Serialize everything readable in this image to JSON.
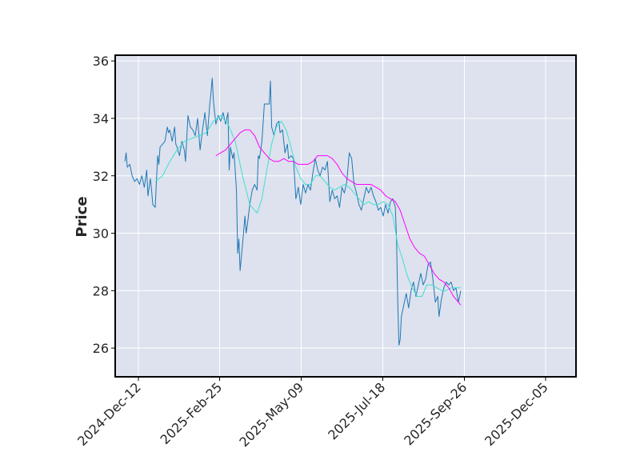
{
  "chart_data": {
    "type": "line",
    "title": "",
    "xlabel": "",
    "ylabel": "Price",
    "ylim": [
      25.0,
      36.2
    ],
    "grid": true,
    "background_color": "#dde2ee",
    "x_tick_labels": [
      "2024-Dec-12",
      "2025-Feb-25",
      "2025-May-09",
      "2025-Jul-18",
      "2025-Sep-26",
      "2025-Dec-05"
    ],
    "y_ticks": [
      26,
      28,
      30,
      32,
      34,
      36
    ],
    "y_tick_labels": [
      "26",
      "28",
      "30",
      "32",
      "34",
      "36"
    ],
    "x_range": [
      "2024-12-04",
      "2025-12-19"
    ],
    "series": [
      {
        "color": "#1f77b4",
        "width": 1,
        "points": [
          [
            "2024-12-12",
            32.5
          ],
          [
            "2024-12-13",
            32.8
          ],
          [
            "2024-12-14",
            32.3
          ],
          [
            "2024-12-16",
            32.4
          ],
          [
            "2024-12-18",
            32.0
          ],
          [
            "2024-12-20",
            31.8
          ],
          [
            "2024-12-22",
            31.9
          ],
          [
            "2024-12-24",
            31.7
          ],
          [
            "2024-12-26",
            32.0
          ],
          [
            "2024-12-28",
            31.6
          ],
          [
            "2024-12-30",
            32.2
          ],
          [
            "2024-12-31",
            31.3
          ],
          [
            "2025-01-02",
            31.9
          ],
          [
            "2025-01-03",
            31.5
          ],
          [
            "2025-01-04",
            31.0
          ],
          [
            "2025-01-06",
            30.9
          ],
          [
            "2025-01-08",
            32.7
          ],
          [
            "2025-01-09",
            32.4
          ],
          [
            "2025-01-10",
            33.0
          ],
          [
            "2025-01-12",
            33.1
          ],
          [
            "2025-01-14",
            33.2
          ],
          [
            "2025-01-16",
            33.7
          ],
          [
            "2025-01-17",
            33.5
          ],
          [
            "2025-01-18",
            33.6
          ],
          [
            "2025-01-20",
            33.2
          ],
          [
            "2025-01-22",
            33.7
          ],
          [
            "2025-01-23",
            33.1
          ],
          [
            "2025-01-24",
            33.0
          ],
          [
            "2025-01-26",
            32.7
          ],
          [
            "2025-01-28",
            33.2
          ],
          [
            "2025-01-30",
            32.9
          ],
          [
            "2025-01-31",
            32.5
          ],
          [
            "2025-02-02",
            34.1
          ],
          [
            "2025-02-04",
            33.7
          ],
          [
            "2025-02-06",
            33.6
          ],
          [
            "2025-02-08",
            33.4
          ],
          [
            "2025-02-10",
            34.0
          ],
          [
            "2025-02-12",
            32.9
          ],
          [
            "2025-02-14",
            33.6
          ],
          [
            "2025-02-16",
            34.2
          ],
          [
            "2025-02-18",
            33.4
          ],
          [
            "2025-02-20",
            34.5
          ],
          [
            "2025-02-21",
            34.9
          ],
          [
            "2025-02-22",
            35.4
          ],
          [
            "2025-02-23",
            34.6
          ],
          [
            "2025-02-25",
            33.8
          ],
          [
            "2025-02-27",
            34.1
          ],
          [
            "2025-03-01",
            33.9
          ],
          [
            "2025-03-03",
            34.2
          ],
          [
            "2025-03-05",
            33.8
          ],
          [
            "2025-03-07",
            34.2
          ],
          [
            "2025-03-08",
            32.2
          ],
          [
            "2025-03-09",
            33.0
          ],
          [
            "2025-03-11",
            32.6
          ],
          [
            "2025-03-12",
            32.8
          ],
          [
            "2025-03-14",
            31.5
          ],
          [
            "2025-03-15",
            29.3
          ],
          [
            "2025-03-16",
            29.8
          ],
          [
            "2025-03-17",
            28.7
          ],
          [
            "2025-03-19",
            29.6
          ],
          [
            "2025-03-21",
            30.6
          ],
          [
            "2025-03-22",
            30.0
          ],
          [
            "2025-03-23",
            30.3
          ],
          [
            "2025-03-25",
            31.0
          ],
          [
            "2025-03-27",
            31.5
          ],
          [
            "2025-03-29",
            31.7
          ],
          [
            "2025-03-31",
            31.5
          ],
          [
            "2025-04-01",
            32.7
          ],
          [
            "2025-04-02",
            32.6
          ],
          [
            "2025-04-04",
            33.2
          ],
          [
            "2025-04-06",
            34.5
          ],
          [
            "2025-04-08",
            34.5
          ],
          [
            "2025-04-10",
            34.5
          ],
          [
            "2025-04-11",
            35.3
          ],
          [
            "2025-04-12",
            33.7
          ],
          [
            "2025-04-14",
            33.4
          ],
          [
            "2025-04-16",
            33.8
          ],
          [
            "2025-04-18",
            33.9
          ],
          [
            "2025-04-19",
            33.5
          ],
          [
            "2025-04-21",
            33.6
          ],
          [
            "2025-04-23",
            32.8
          ],
          [
            "2025-04-25",
            33.1
          ],
          [
            "2025-04-26",
            32.6
          ],
          [
            "2025-04-28",
            32.7
          ],
          [
            "2025-04-30",
            32.6
          ],
          [
            "2025-05-02",
            31.2
          ],
          [
            "2025-05-04",
            31.6
          ],
          [
            "2025-05-06",
            31.0
          ],
          [
            "2025-05-08",
            31.7
          ],
          [
            "2025-05-10",
            31.4
          ],
          [
            "2025-05-12",
            31.7
          ],
          [
            "2025-05-14",
            31.5
          ],
          [
            "2025-05-16",
            32.1
          ],
          [
            "2025-05-18",
            32.6
          ],
          [
            "2025-05-20",
            32.2
          ],
          [
            "2025-05-22",
            32.0
          ],
          [
            "2025-05-24",
            32.3
          ],
          [
            "2025-05-26",
            32.2
          ],
          [
            "2025-05-28",
            32.5
          ],
          [
            "2025-05-30",
            31.1
          ],
          [
            "2025-06-01",
            31.5
          ],
          [
            "2025-06-03",
            31.2
          ],
          [
            "2025-06-05",
            31.3
          ],
          [
            "2025-06-07",
            30.9
          ],
          [
            "2025-06-09",
            31.6
          ],
          [
            "2025-06-11",
            31.4
          ],
          [
            "2025-06-13",
            31.8
          ],
          [
            "2025-06-15",
            32.8
          ],
          [
            "2025-06-17",
            32.6
          ],
          [
            "2025-06-19",
            31.7
          ],
          [
            "2025-06-21",
            31.4
          ],
          [
            "2025-06-23",
            31.0
          ],
          [
            "2025-06-25",
            30.8
          ],
          [
            "2025-06-27",
            31.2
          ],
          [
            "2025-06-29",
            31.6
          ],
          [
            "2025-07-01",
            31.4
          ],
          [
            "2025-07-03",
            31.6
          ],
          [
            "2025-07-05",
            31.3
          ],
          [
            "2025-07-07",
            31.1
          ],
          [
            "2025-07-09",
            30.8
          ],
          [
            "2025-07-11",
            30.9
          ],
          [
            "2025-07-13",
            30.6
          ],
          [
            "2025-07-15",
            31.0
          ],
          [
            "2025-07-17",
            30.7
          ],
          [
            "2025-07-19",
            31.1
          ],
          [
            "2025-07-21",
            31.2
          ],
          [
            "2025-07-23",
            30.9
          ],
          [
            "2025-07-24",
            29.8
          ],
          [
            "2025-07-25",
            27.6
          ],
          [
            "2025-07-26",
            26.1
          ],
          [
            "2025-07-27",
            26.3
          ],
          [
            "2025-07-28",
            27.1
          ],
          [
            "2025-07-30",
            27.5
          ],
          [
            "2025-08-01",
            27.9
          ],
          [
            "2025-08-03",
            27.4
          ],
          [
            "2025-08-05",
            28.0
          ],
          [
            "2025-08-07",
            28.3
          ],
          [
            "2025-08-09",
            27.8
          ],
          [
            "2025-08-11",
            28.2
          ],
          [
            "2025-08-13",
            28.6
          ],
          [
            "2025-08-15",
            28.2
          ],
          [
            "2025-08-17",
            28.4
          ],
          [
            "2025-08-19",
            28.9
          ],
          [
            "2025-08-21",
            29.0
          ],
          [
            "2025-08-23",
            28.4
          ],
          [
            "2025-08-25",
            27.6
          ],
          [
            "2025-08-27",
            27.8
          ],
          [
            "2025-08-28",
            27.1
          ],
          [
            "2025-08-30",
            27.7
          ],
          [
            "2025-09-01",
            28.1
          ],
          [
            "2025-09-03",
            28.3
          ],
          [
            "2025-09-05",
            28.2
          ],
          [
            "2025-09-07",
            28.3
          ],
          [
            "2025-09-09",
            28.0
          ],
          [
            "2025-09-11",
            28.1
          ],
          [
            "2025-09-13",
            27.6
          ],
          [
            "2025-09-15",
            28.0
          ]
        ]
      },
      {
        "color": "#40e0d0",
        "width": 1,
        "points": [
          [
            "2025-01-06",
            31.8
          ],
          [
            "2025-01-12",
            32.0
          ],
          [
            "2025-01-18",
            32.5
          ],
          [
            "2025-01-24",
            32.9
          ],
          [
            "2025-01-30",
            33.2
          ],
          [
            "2025-02-05",
            33.3
          ],
          [
            "2025-02-11",
            33.4
          ],
          [
            "2025-02-17",
            33.5
          ],
          [
            "2025-02-23",
            33.9
          ],
          [
            "2025-03-01",
            34.1
          ],
          [
            "2025-03-07",
            33.8
          ],
          [
            "2025-03-13",
            33.2
          ],
          [
            "2025-03-19",
            32.0
          ],
          [
            "2025-03-25",
            31.0
          ],
          [
            "2025-03-31",
            30.7
          ],
          [
            "2025-04-04",
            31.2
          ],
          [
            "2025-04-08",
            32.2
          ],
          [
            "2025-04-12",
            33.1
          ],
          [
            "2025-04-16",
            33.7
          ],
          [
            "2025-04-20",
            33.9
          ],
          [
            "2025-04-24",
            33.6
          ],
          [
            "2025-04-28",
            33.0
          ],
          [
            "2025-05-02",
            32.3
          ],
          [
            "2025-05-06",
            31.9
          ],
          [
            "2025-05-10",
            31.7
          ],
          [
            "2025-05-14",
            31.7
          ],
          [
            "2025-05-18",
            32.0
          ],
          [
            "2025-05-22",
            32.0
          ],
          [
            "2025-05-26",
            31.8
          ],
          [
            "2025-05-30",
            31.6
          ],
          [
            "2025-06-03",
            31.5
          ],
          [
            "2025-06-07",
            31.6
          ],
          [
            "2025-06-11",
            31.7
          ],
          [
            "2025-06-15",
            31.6
          ],
          [
            "2025-06-19",
            31.4
          ],
          [
            "2025-06-23",
            31.2
          ],
          [
            "2025-06-27",
            31.0
          ],
          [
            "2025-07-01",
            31.1
          ],
          [
            "2025-07-05",
            31.0
          ],
          [
            "2025-07-09",
            31.0
          ],
          [
            "2025-07-13",
            31.1
          ],
          [
            "2025-07-17",
            31.0
          ],
          [
            "2025-07-21",
            30.6
          ],
          [
            "2025-07-25",
            29.6
          ],
          [
            "2025-07-29",
            29.1
          ],
          [
            "2025-08-02",
            28.5
          ],
          [
            "2025-08-06",
            28.1
          ],
          [
            "2025-08-10",
            27.8
          ],
          [
            "2025-08-14",
            27.8
          ],
          [
            "2025-08-18",
            28.2
          ],
          [
            "2025-08-22",
            28.2
          ],
          [
            "2025-08-26",
            28.1
          ],
          [
            "2025-08-30",
            28.0
          ],
          [
            "2025-09-03",
            28.0
          ],
          [
            "2025-09-07",
            28.1
          ],
          [
            "2025-09-11",
            28.1
          ],
          [
            "2025-09-15",
            28.1
          ]
        ]
      },
      {
        "color": "#ff00ff",
        "width": 1,
        "points": [
          [
            "2025-02-25",
            32.7
          ],
          [
            "2025-03-01",
            32.8
          ],
          [
            "2025-03-05",
            32.9
          ],
          [
            "2025-03-09",
            33.1
          ],
          [
            "2025-03-13",
            33.3
          ],
          [
            "2025-03-17",
            33.5
          ],
          [
            "2025-03-21",
            33.6
          ],
          [
            "2025-03-25",
            33.6
          ],
          [
            "2025-03-29",
            33.4
          ],
          [
            "2025-04-02",
            33.0
          ],
          [
            "2025-04-06",
            32.8
          ],
          [
            "2025-04-10",
            32.6
          ],
          [
            "2025-04-14",
            32.5
          ],
          [
            "2025-04-18",
            32.5
          ],
          [
            "2025-04-22",
            32.6
          ],
          [
            "2025-04-26",
            32.5
          ],
          [
            "2025-04-30",
            32.5
          ],
          [
            "2025-05-04",
            32.4
          ],
          [
            "2025-05-08",
            32.4
          ],
          [
            "2025-05-12",
            32.4
          ],
          [
            "2025-05-16",
            32.5
          ],
          [
            "2025-05-20",
            32.7
          ],
          [
            "2025-05-24",
            32.7
          ],
          [
            "2025-05-28",
            32.7
          ],
          [
            "2025-06-01",
            32.6
          ],
          [
            "2025-06-05",
            32.4
          ],
          [
            "2025-06-09",
            32.1
          ],
          [
            "2025-06-13",
            31.9
          ],
          [
            "2025-06-17",
            31.8
          ],
          [
            "2025-06-21",
            31.7
          ],
          [
            "2025-06-25",
            31.7
          ],
          [
            "2025-06-29",
            31.7
          ],
          [
            "2025-07-03",
            31.7
          ],
          [
            "2025-07-07",
            31.6
          ],
          [
            "2025-07-11",
            31.5
          ],
          [
            "2025-07-15",
            31.3
          ],
          [
            "2025-07-19",
            31.2
          ],
          [
            "2025-07-23",
            31.1
          ],
          [
            "2025-07-27",
            30.8
          ],
          [
            "2025-07-31",
            30.3
          ],
          [
            "2025-08-04",
            29.8
          ],
          [
            "2025-08-08",
            29.5
          ],
          [
            "2025-08-12",
            29.3
          ],
          [
            "2025-08-16",
            29.2
          ],
          [
            "2025-08-20",
            28.9
          ],
          [
            "2025-08-24",
            28.6
          ],
          [
            "2025-08-28",
            28.4
          ],
          [
            "2025-09-01",
            28.3
          ],
          [
            "2025-09-05",
            28.1
          ],
          [
            "2025-09-09",
            27.8
          ],
          [
            "2025-09-13",
            27.6
          ],
          [
            "2025-09-15",
            27.5
          ]
        ]
      }
    ]
  }
}
